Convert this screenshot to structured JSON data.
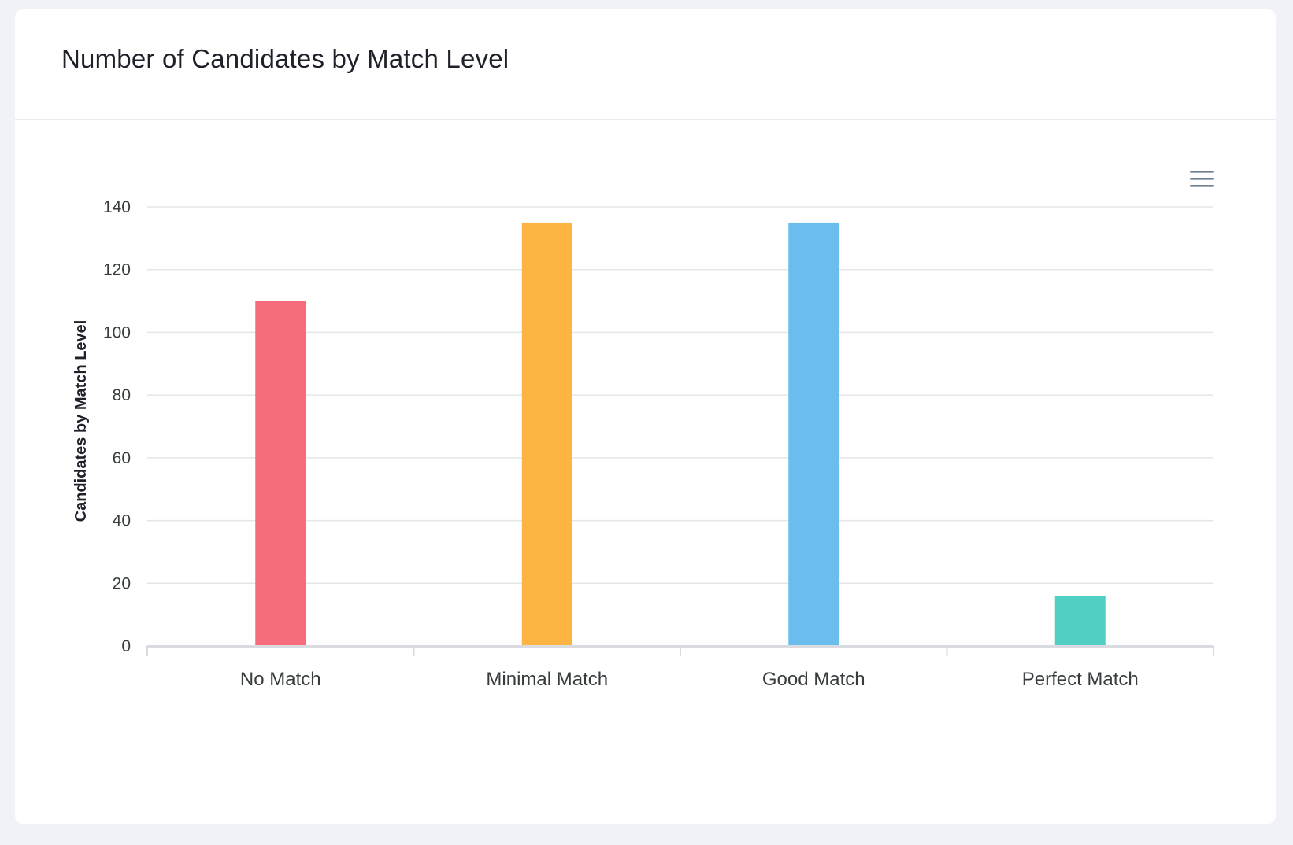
{
  "card": {
    "title": "Number of Candidates by Match Level"
  },
  "toolbar": {
    "menu_icon": "hamburger-menu-icon"
  },
  "colors": {
    "no_match": "#f76c7b",
    "minimal_match": "#feb443",
    "good_match": "#6bbdee",
    "perfect_match": "#51cfc3",
    "grid": "#e3e5e9",
    "axis": "#d9dbe0",
    "tick_text": "#373d3f"
  },
  "chart_data": {
    "type": "bar",
    "title": "Number of Candidates by Match Level",
    "xlabel": "",
    "ylabel": "Candidates by Match Level",
    "categories": [
      "No Match",
      "Minimal Match",
      "Good Match",
      "Perfect Match"
    ],
    "values": [
      110,
      135,
      135,
      16
    ],
    "bar_colors": [
      "#f76c7b",
      "#feb443",
      "#6bbdee",
      "#51cfc3"
    ],
    "ylim": [
      0,
      140
    ],
    "yticks": [
      0,
      20,
      40,
      60,
      80,
      100,
      120,
      140
    ],
    "grid": true,
    "legend": "none"
  }
}
